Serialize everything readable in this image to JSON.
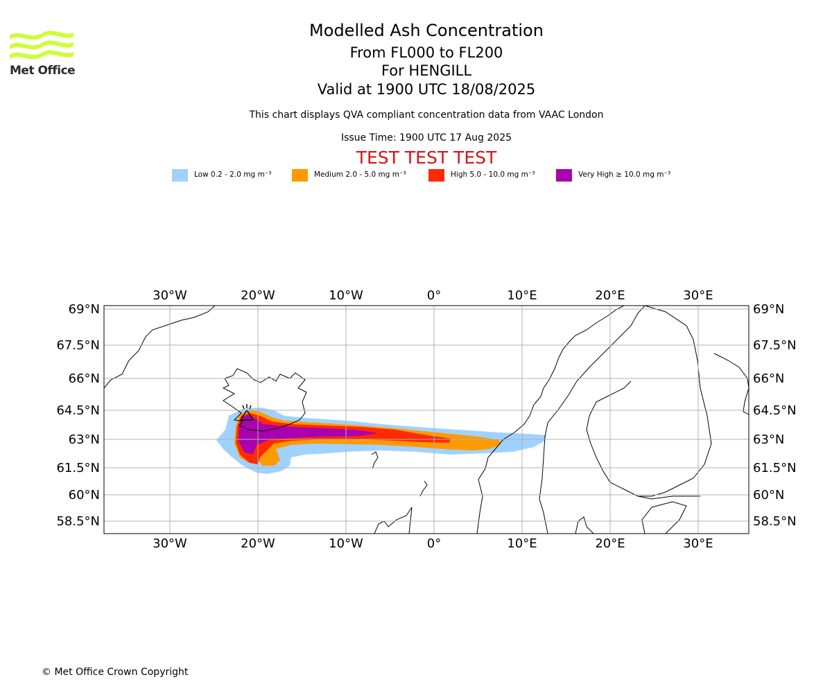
{
  "logo": {
    "text": "Met Office",
    "color": "#ccff33"
  },
  "header": {
    "title": "Modelled Ash Concentration",
    "levels": "From FL000 to FL200",
    "location": "For HENGILL",
    "valid": "Valid at 1900 UTC 18/08/2025",
    "note": "This chart displays QVA compliant concentration data from VAAC London",
    "issue": "Issue Time: 1900 UTC 17 Aug 2025",
    "test_banner": "TEST TEST TEST"
  },
  "legend": [
    {
      "label": "Low 0.2 - 2.0 mg m⁻³",
      "color": "#a0d2ff"
    },
    {
      "label": "Medium 2.0 - 5.0 mg m⁻³",
      "color": "#ff9a00"
    },
    {
      "label": "High 5.0 - 10.0 mg m⁻³",
      "color": "#ff2a00"
    },
    {
      "label": "Very High ≥ 10.0 mg m⁻³",
      "color": "#aa00b0"
    }
  ],
  "map": {
    "lon_ticks": [
      "30°W",
      "20°W",
      "10°W",
      "0°",
      "10°E",
      "20°E",
      "30°E"
    ],
    "lat_ticks": [
      "69°N",
      "67.5°N",
      "66°N",
      "64.5°N",
      "63°N",
      "61.5°N",
      "60°N",
      "58.5°N"
    ],
    "volcano": "HENGILL",
    "grid": true
  },
  "footer": {
    "copyright": "© Met Office Crown Copyright"
  }
}
